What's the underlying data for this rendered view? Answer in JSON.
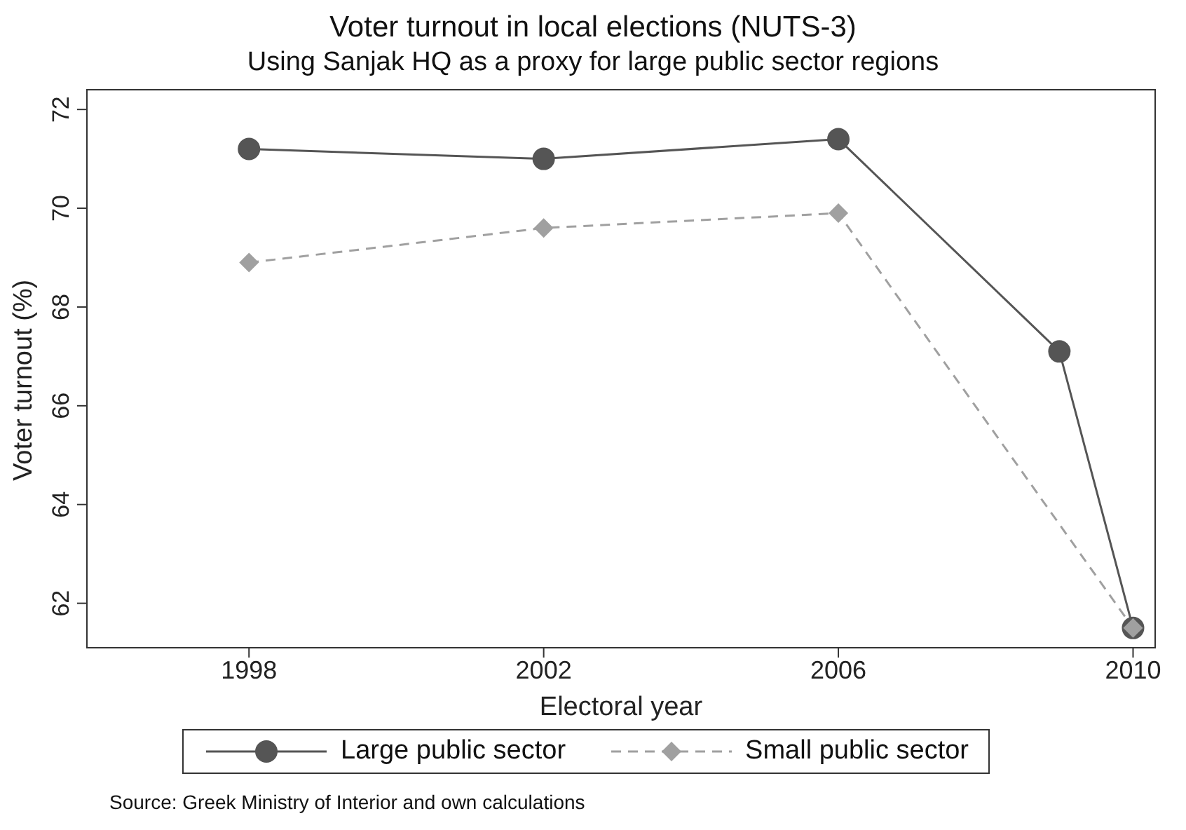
{
  "chart_data": {
    "type": "line",
    "title": "Voter turnout in local elections (NUTS-3)",
    "subtitle": "Using Sanjak HQ as a proxy for large public sector regions",
    "xlabel": "Electoral year",
    "ylabel": "Voter turnout (%)",
    "xlim": [
      1995.8,
      2010.3
    ],
    "xticks": [
      1998,
      2002,
      2006,
      2010
    ],
    "ylim": [
      61.1,
      72.4
    ],
    "yticks": [
      62,
      64,
      66,
      68,
      70,
      72
    ],
    "grid": false,
    "legend": "bottom",
    "series": [
      {
        "name": "Large public sector",
        "color": "#555555",
        "x": [
          1998,
          2002,
          2006,
          2009,
          2010
        ],
        "values": [
          71.2,
          71.0,
          71.4,
          67.1,
          61.5
        ],
        "marker": "circle",
        "line_style": "solid"
      },
      {
        "name": "Small public sector",
        "color": "#a0a0a0",
        "x": [
          1998,
          2002,
          2006,
          2010
        ],
        "values": [
          68.9,
          69.6,
          69.9,
          61.5
        ],
        "marker": "diamond",
        "line_style": "dashed"
      }
    ],
    "annotations": [
      "Source: Greek Ministry of Interior and own calculations"
    ]
  }
}
